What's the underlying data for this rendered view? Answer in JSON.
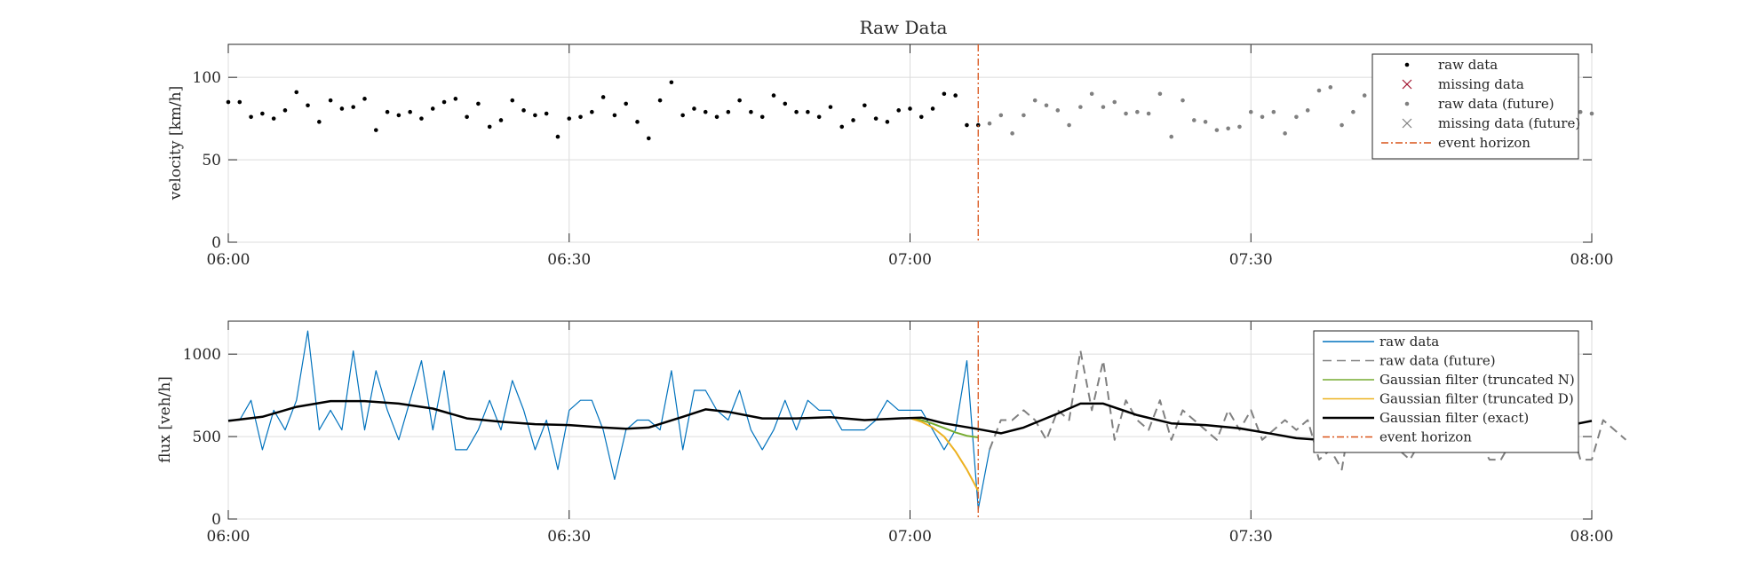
{
  "figure_title": "Raw Data",
  "chart_data": [
    {
      "type": "scatter",
      "title": "Raw Data",
      "xlabel": "",
      "ylabel": "velocity [km/h]",
      "xlim": [
        0,
        120
      ],
      "ylim": [
        0,
        120
      ],
      "x_tick_labels": [
        "06:00",
        "06:30",
        "07:00",
        "07:30",
        "08:00"
      ],
      "y_ticks": [
        0,
        50,
        100
      ],
      "grid": true,
      "legend_location": "top-right",
      "event_horizon_minute": 66,
      "legend": [
        {
          "label": "raw data",
          "style": "dot",
          "color": "#000000"
        },
        {
          "label": "missing data",
          "style": "x",
          "color": "#a2142f"
        },
        {
          "label": "raw data (future)",
          "style": "dot",
          "color": "#808080"
        },
        {
          "label": "missing data (future)",
          "style": "x",
          "color": "#808080"
        },
        {
          "label": "event horizon",
          "style": "dashdot",
          "color": "#d95319"
        }
      ],
      "series": [
        {
          "name": "raw data",
          "x_start_minute": 0,
          "step_minutes": 1,
          "values": [
            85,
            85,
            76,
            78,
            75,
            80,
            91,
            83,
            73,
            86,
            81,
            82,
            87,
            68,
            79,
            77,
            79,
            75,
            81,
            85,
            87,
            76,
            84,
            70,
            74,
            86,
            80,
            77,
            78,
            64,
            75,
            76,
            79,
            88,
            77,
            84,
            73,
            63,
            86,
            97,
            77,
            81,
            79,
            76,
            79,
            86,
            79,
            76,
            89,
            84,
            79,
            79,
            76,
            82,
            70,
            74,
            83,
            75,
            73,
            80,
            81,
            76,
            81,
            90,
            89,
            71,
            71
          ]
        },
        {
          "name": "raw data (future)",
          "x_start_minute": 67,
          "step_minutes": 1,
          "values": [
            72,
            77,
            66,
            77,
            86,
            83,
            80,
            71,
            82,
            90,
            82,
            85,
            78,
            79,
            78,
            90,
            64,
            86,
            74,
            73,
            68,
            69,
            70,
            79,
            76,
            79,
            66,
            76,
            80,
            92,
            94,
            71,
            79,
            89,
            82,
            80,
            88,
            76,
            75,
            78,
            80,
            73,
            76,
            82,
            80,
            76,
            70,
            79,
            84,
            78,
            79,
            80,
            79,
            78
          ]
        }
      ]
    },
    {
      "type": "line",
      "title": "",
      "xlabel": "",
      "ylabel": "flux [veh/h]",
      "xlim": [
        0,
        120
      ],
      "ylim": [
        0,
        1200
      ],
      "x_tick_labels": [
        "06:00",
        "06:30",
        "07:00",
        "07:30",
        "08:00"
      ],
      "y_ticks": [
        0,
        500,
        1000
      ],
      "grid": true,
      "legend_location": "top-right",
      "event_horizon_minute": 66,
      "legend": [
        {
          "label": "raw data",
          "style": "solid",
          "color": "#0072bd"
        },
        {
          "label": "raw data (future)",
          "style": "dashed",
          "color": "#808080"
        },
        {
          "label": "Gaussian filter (truncated N)",
          "style": "solid",
          "color": "#77ac30"
        },
        {
          "label": "Gaussian filter (truncated D)",
          "style": "solid",
          "color": "#edb120"
        },
        {
          "label": "Gaussian filter (exact)",
          "style": "solid-thick",
          "color": "#000000"
        },
        {
          "label": "event horizon",
          "style": "dashdot",
          "color": "#d95319"
        }
      ],
      "series": [
        {
          "name": "raw data",
          "x_start_minute": 0,
          "step_minutes": 1,
          "values": [
            600,
            600,
            720,
            420,
            660,
            540,
            720,
            1140,
            540,
            660,
            540,
            1020,
            540,
            900,
            660,
            480,
            720,
            960,
            540,
            900,
            420,
            420,
            540,
            720,
            540,
            840,
            660,
            420,
            600,
            300,
            660,
            720,
            720,
            540,
            240,
            540,
            600,
            600,
            540,
            900,
            420,
            780,
            780,
            660,
            600,
            780,
            540,
            420,
            540,
            720,
            540,
            720,
            660,
            660,
            540,
            540,
            540,
            600,
            720,
            660,
            660,
            660,
            540,
            420,
            540,
            960,
            60,
            420
          ]
        },
        {
          "name": "raw data (future)",
          "x_start_minute": 67,
          "step_minutes": 1,
          "values": [
            420,
            600,
            600,
            660,
            600,
            480,
            660,
            600,
            1020,
            660,
            960,
            480,
            720,
            600,
            540,
            720,
            480,
            660,
            600,
            540,
            480,
            660,
            540,
            660,
            480,
            540,
            600,
            540,
            600,
            360,
            420,
            300,
            720,
            600,
            540,
            480,
            420,
            360,
            480,
            600,
            540,
            540,
            600,
            480,
            360,
            360,
            480,
            480,
            540,
            600,
            480,
            600,
            360,
            360,
            600,
            540,
            480
          ]
        },
        {
          "name": "Gaussian filter (truncated N)",
          "points": [
            [
              60,
              615
            ],
            [
              61,
              600
            ],
            [
              62,
              578
            ],
            [
              63,
              552
            ],
            [
              64,
              525
            ],
            [
              65,
              505
            ],
            [
              66,
              495
            ]
          ]
        },
        {
          "name": "Gaussian filter (truncated D)",
          "points": [
            [
              60,
              612
            ],
            [
              61,
              590
            ],
            [
              62,
              555
            ],
            [
              63,
              500
            ],
            [
              64,
              410
            ],
            [
              65,
              300
            ],
            [
              66,
              170
            ]
          ]
        },
        {
          "name": "Gaussian filter (exact)",
          "points": [
            [
              0,
              595
            ],
            [
              3,
              620
            ],
            [
              6,
              680
            ],
            [
              9,
              715
            ],
            [
              12,
              715
            ],
            [
              15,
              700
            ],
            [
              18,
              670
            ],
            [
              21,
              610
            ],
            [
              24,
              590
            ],
            [
              27,
              575
            ],
            [
              30,
              570
            ],
            [
              33,
              555
            ],
            [
              35,
              548
            ],
            [
              37,
              555
            ],
            [
              40,
              620
            ],
            [
              42,
              665
            ],
            [
              44,
              650
            ],
            [
              47,
              610
            ],
            [
              50,
              610
            ],
            [
              53,
              618
            ],
            [
              56,
              600
            ],
            [
              59,
              610
            ],
            [
              61,
              615
            ],
            [
              63,
              580
            ],
            [
              66,
              545
            ],
            [
              68,
              520
            ],
            [
              70,
              555
            ],
            [
              73,
              640
            ],
            [
              75,
              700
            ],
            [
              77,
              700
            ],
            [
              80,
              630
            ],
            [
              83,
              580
            ],
            [
              86,
              570
            ],
            [
              89,
              550
            ],
            [
              92,
              515
            ],
            [
              94,
              490
            ],
            [
              96,
              480
            ],
            [
              98,
              490
            ],
            [
              100,
              515
            ],
            [
              102,
              525
            ],
            [
              105,
              520
            ],
            [
              108,
              545
            ],
            [
              111,
              550
            ],
            [
              114,
              540
            ],
            [
              117,
              555
            ],
            [
              120,
              595
            ]
          ]
        }
      ]
    }
  ]
}
